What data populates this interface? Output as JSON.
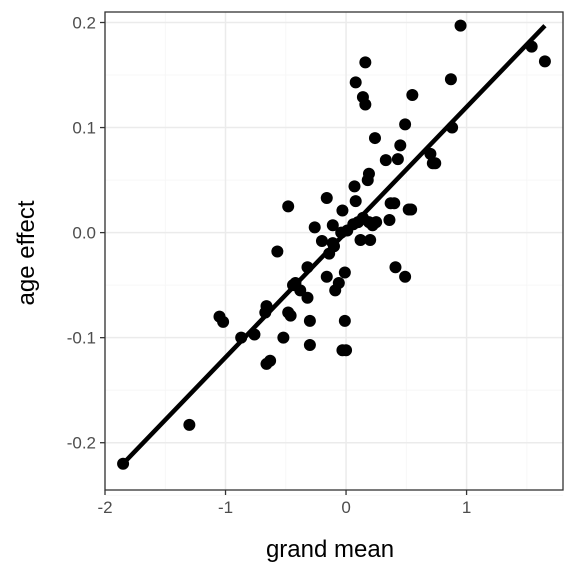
{
  "chart_data": {
    "type": "scatter",
    "xlabel": "grand mean",
    "ylabel": "age effect",
    "xlim": [
      -2.0,
      1.8
    ],
    "ylim": [
      -0.245,
      0.21
    ],
    "x_ticks": [
      -2,
      -1,
      0,
      1
    ],
    "x_tick_labels": [
      "-2",
      "-1",
      "0",
      "1"
    ],
    "y_ticks": [
      -0.2,
      -0.1,
      0.0,
      0.1,
      0.2
    ],
    "y_tick_labels": [
      "-0.2",
      "-0.1",
      "0.0",
      "0.1",
      "0.2"
    ],
    "grid": true,
    "colors": {
      "points": "#000000",
      "line": "#000000",
      "grid_major": "#ebebeb",
      "grid_minor": "#f5f5f5",
      "panel_border": "#333333"
    },
    "points": [
      {
        "x": -1.85,
        "y": -0.22
      },
      {
        "x": -1.3,
        "y": -0.183
      },
      {
        "x": -1.05,
        "y": -0.08
      },
      {
        "x": -1.02,
        "y": -0.085
      },
      {
        "x": -0.87,
        "y": -0.1
      },
      {
        "x": -0.76,
        "y": -0.097
      },
      {
        "x": -0.66,
        "y": -0.07
      },
      {
        "x": -0.67,
        "y": -0.076
      },
      {
        "x": -0.66,
        "y": -0.125
      },
      {
        "x": -0.63,
        "y": -0.122
      },
      {
        "x": -0.57,
        "y": -0.018
      },
      {
        "x": -0.52,
        "y": -0.1
      },
      {
        "x": -0.48,
        "y": 0.025
      },
      {
        "x": -0.48,
        "y": -0.076
      },
      {
        "x": -0.46,
        "y": -0.079
      },
      {
        "x": -0.44,
        "y": -0.05
      },
      {
        "x": -0.42,
        "y": -0.048
      },
      {
        "x": -0.38,
        "y": -0.055
      },
      {
        "x": -0.32,
        "y": -0.033
      },
      {
        "x": -0.32,
        "y": -0.062
      },
      {
        "x": -0.3,
        "y": -0.084
      },
      {
        "x": -0.3,
        "y": -0.107
      },
      {
        "x": -0.26,
        "y": 0.005
      },
      {
        "x": -0.2,
        "y": -0.008
      },
      {
        "x": -0.16,
        "y": 0.033
      },
      {
        "x": -0.16,
        "y": -0.042
      },
      {
        "x": -0.14,
        "y": -0.02
      },
      {
        "x": -0.11,
        "y": 0.007
      },
      {
        "x": -0.11,
        "y": -0.01
      },
      {
        "x": -0.1,
        "y": -0.013
      },
      {
        "x": -0.09,
        "y": -0.055
      },
      {
        "x": -0.06,
        "y": -0.048
      },
      {
        "x": -0.04,
        "y": 0.0
      },
      {
        "x": -0.03,
        "y": 0.021
      },
      {
        "x": -0.03,
        "y": -0.112
      },
      {
        "x": -0.01,
        "y": -0.084
      },
      {
        "x": -0.01,
        "y": -0.038
      },
      {
        "x": 0.0,
        "y": -0.112
      },
      {
        "x": 0.01,
        "y": 0.002
      },
      {
        "x": 0.06,
        "y": 0.008
      },
      {
        "x": 0.07,
        "y": 0.044
      },
      {
        "x": 0.08,
        "y": 0.03
      },
      {
        "x": 0.08,
        "y": 0.143
      },
      {
        "x": 0.1,
        "y": 0.01
      },
      {
        "x": 0.12,
        "y": -0.007
      },
      {
        "x": 0.14,
        "y": 0.014
      },
      {
        "x": 0.14,
        "y": 0.129
      },
      {
        "x": 0.16,
        "y": 0.162
      },
      {
        "x": 0.16,
        "y": 0.122
      },
      {
        "x": 0.18,
        "y": 0.05
      },
      {
        "x": 0.19,
        "y": 0.056
      },
      {
        "x": 0.19,
        "y": 0.01
      },
      {
        "x": 0.2,
        "y": -0.007
      },
      {
        "x": 0.22,
        "y": 0.007
      },
      {
        "x": 0.24,
        "y": 0.09
      },
      {
        "x": 0.25,
        "y": 0.01
      },
      {
        "x": 0.33,
        "y": 0.069
      },
      {
        "x": 0.36,
        "y": 0.012
      },
      {
        "x": 0.37,
        "y": 0.028
      },
      {
        "x": 0.4,
        "y": 0.028
      },
      {
        "x": 0.41,
        "y": -0.033
      },
      {
        "x": 0.43,
        "y": 0.07
      },
      {
        "x": 0.45,
        "y": 0.083
      },
      {
        "x": 0.49,
        "y": 0.103
      },
      {
        "x": 0.49,
        "y": -0.042
      },
      {
        "x": 0.52,
        "y": 0.022
      },
      {
        "x": 0.54,
        "y": 0.022
      },
      {
        "x": 0.55,
        "y": 0.131
      },
      {
        "x": 0.7,
        "y": 0.075
      },
      {
        "x": 0.72,
        "y": 0.066
      },
      {
        "x": 0.74,
        "y": 0.066
      },
      {
        "x": 0.87,
        "y": 0.146
      },
      {
        "x": 0.88,
        "y": 0.1
      },
      {
        "x": 0.95,
        "y": 0.197
      },
      {
        "x": 1.54,
        "y": 0.177
      },
      {
        "x": 1.65,
        "y": 0.163
      }
    ],
    "trend_line": {
      "x": [
        -1.85,
        1.65
      ],
      "y": [
        -0.22,
        0.197
      ]
    }
  }
}
